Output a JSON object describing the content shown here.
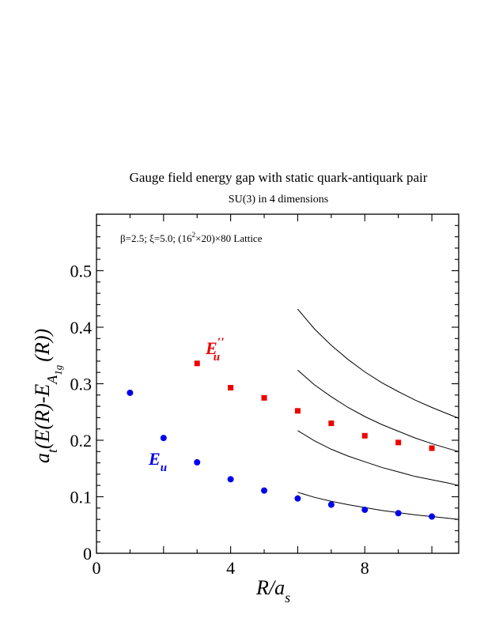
{
  "chart_data": {
    "type": "scatter",
    "title": "Gauge field energy gap with static quark-antiquark pair",
    "subtitle": "SU(3) in 4 dimensions",
    "annotation": {
      "prefix": "β=2.5;  ξ=5.0; (16",
      "sup": "2",
      "suffix": "×20)×80 Lattice"
    },
    "xlabel": {
      "main": "R/a",
      "sub": "s"
    },
    "ylabel": {
      "p1": "a",
      "p1_sub": "t",
      "p2": "(E(R)-E",
      "p2_sub": "A",
      "p2_subsub": "1g",
      "p3": "(R))"
    },
    "xlim": [
      0,
      10.8
    ],
    "ylim": [
      0,
      0.6
    ],
    "xticks": [
      "0",
      "4",
      "8"
    ],
    "xtick_values": [
      0,
      4,
      8
    ],
    "yticks": [
      "0",
      "0.1",
      "0.2",
      "0.3",
      "0.4",
      "0.5"
    ],
    "ytick_values": [
      0,
      0.1,
      0.2,
      0.3,
      0.4,
      0.5
    ],
    "series": [
      {
        "name": "E_u",
        "label_main": "E",
        "label_sub": "u",
        "color": "#0000ee",
        "marker": "circle",
        "x": [
          1,
          2,
          3,
          4,
          5,
          6,
          7,
          8,
          9,
          10
        ],
        "y": [
          0.284,
          0.204,
          0.161,
          0.131,
          0.111,
          0.097,
          0.086,
          0.077,
          0.071,
          0.065
        ]
      },
      {
        "name": "E_u''",
        "label_main": "E",
        "label_sub": "u",
        "label_sup": "′′",
        "color": "#ee0000",
        "marker": "square",
        "x": [
          3,
          4,
          5,
          6,
          7,
          8,
          9,
          10
        ],
        "y": [
          0.336,
          0.293,
          0.275,
          0.252,
          0.23,
          0.208,
          0.196,
          0.186
        ]
      }
    ],
    "curves": [
      {
        "x": [
          6,
          6.5,
          7,
          7.5,
          8,
          8.5,
          9,
          9.5,
          10,
          10.5,
          10.8
        ],
        "y": [
          0.108,
          0.099,
          0.092,
          0.086,
          0.081,
          0.076,
          0.072,
          0.068,
          0.065,
          0.062,
          0.06
        ]
      },
      {
        "x": [
          6,
          6.5,
          7,
          7.5,
          8,
          8.5,
          9,
          9.5,
          10,
          10.5,
          10.8
        ],
        "y": [
          0.217,
          0.199,
          0.184,
          0.172,
          0.162,
          0.152,
          0.144,
          0.136,
          0.13,
          0.124,
          0.12
        ]
      },
      {
        "x": [
          6,
          6.5,
          7,
          7.5,
          8,
          8.5,
          9,
          9.5,
          10,
          10.5,
          10.8
        ],
        "y": [
          0.324,
          0.298,
          0.277,
          0.258,
          0.242,
          0.228,
          0.216,
          0.204,
          0.194,
          0.185,
          0.18
        ]
      },
      {
        "x": [
          6,
          6.5,
          7,
          7.5,
          8,
          8.5,
          9,
          9.5,
          10,
          10.5,
          10.8
        ],
        "y": [
          0.432,
          0.397,
          0.368,
          0.343,
          0.321,
          0.302,
          0.286,
          0.271,
          0.258,
          0.246,
          0.239
        ]
      }
    ],
    "grid": false,
    "legend": "none"
  }
}
